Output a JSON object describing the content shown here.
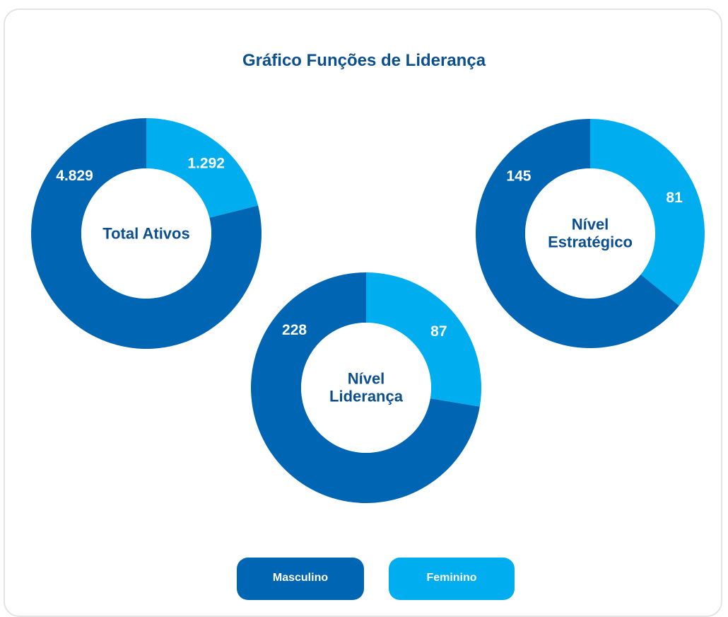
{
  "title": "Gráfico Funções de Liderança",
  "chart_data": [
    {
      "type": "donut",
      "label": "Total Ativos",
      "categories": [
        "Masculino",
        "Feminino"
      ],
      "values": [
        4829,
        1292
      ],
      "value_labels": [
        "4.829",
        "1.292"
      ],
      "colors": [
        "#0066b3",
        "#00aeef"
      ]
    },
    {
      "type": "donut",
      "label": "Nível Liderança",
      "categories": [
        "Masculino",
        "Feminino"
      ],
      "values": [
        228,
        87
      ],
      "colors": [
        "#0066b3",
        "#00aeef"
      ]
    },
    {
      "type": "donut",
      "label": "Nível Estratégico",
      "categories": [
        "Masculino",
        "Feminino"
      ],
      "values": [
        145,
        81
      ],
      "colors": [
        "#0066b3",
        "#00aeef"
      ]
    }
  ]
}
